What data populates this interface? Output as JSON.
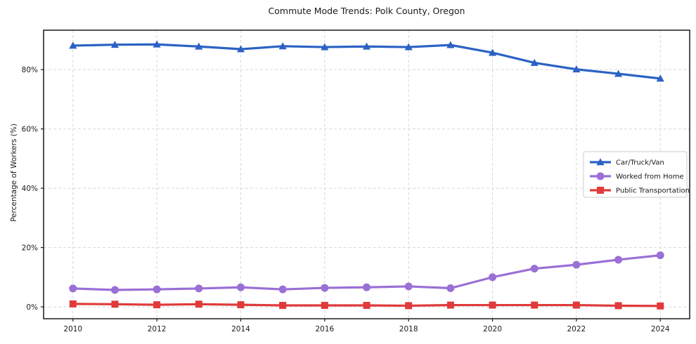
{
  "chart_data": {
    "type": "line",
    "title": "Commute Mode Trends: Polk County, Oregon",
    "xlabel": "",
    "ylabel": "Percentage of Workers (%)",
    "x": [
      2010,
      2011,
      2012,
      2013,
      2014,
      2015,
      2016,
      2017,
      2018,
      2019,
      2020,
      2021,
      2022,
      2023,
      2024
    ],
    "series": [
      {
        "name": "Car/Truck/Van",
        "color": "#2b62c5",
        "marker": "triangle",
        "values": [
          88.1,
          88.4,
          88.5,
          87.8,
          86.9,
          87.9,
          87.6,
          87.8,
          87.6,
          88.3,
          85.7,
          82.3,
          80.1,
          78.6,
          77.0
        ]
      },
      {
        "name": "Worked from Home",
        "color": "#9a6fd6",
        "marker": "circle",
        "values": [
          6.2,
          5.7,
          5.9,
          6.2,
          6.6,
          5.9,
          6.4,
          6.6,
          6.9,
          6.3,
          10.0,
          12.9,
          14.2,
          15.9,
          17.4
        ]
      },
      {
        "name": "Public Transportation",
        "color": "#e03a3a",
        "marker": "square",
        "values": [
          1.0,
          0.9,
          0.7,
          0.9,
          0.7,
          0.5,
          0.5,
          0.5,
          0.4,
          0.6,
          0.6,
          0.6,
          0.6,
          0.4,
          0.3
        ]
      }
    ],
    "xlim": [
      2009.3,
      2024.7
    ],
    "ylim": [
      -4,
      93.3
    ],
    "x_ticks": [
      2010,
      2012,
      2014,
      2016,
      2018,
      2020,
      2022,
      2024
    ],
    "x_tick_labels": [
      "2010",
      "2012",
      "2014",
      "2016",
      "2018",
      "2020",
      "2022",
      "2024"
    ],
    "y_ticks": [
      0,
      20,
      40,
      60,
      80
    ],
    "y_tick_labels": [
      "0%",
      "20%",
      "40%",
      "60%",
      "80%"
    ],
    "grid": true,
    "grid_color": "#d8d8d8",
    "spine_color": "#1a1a1a",
    "legend_position": "center right",
    "legend_border_color": "#cccccc"
  }
}
